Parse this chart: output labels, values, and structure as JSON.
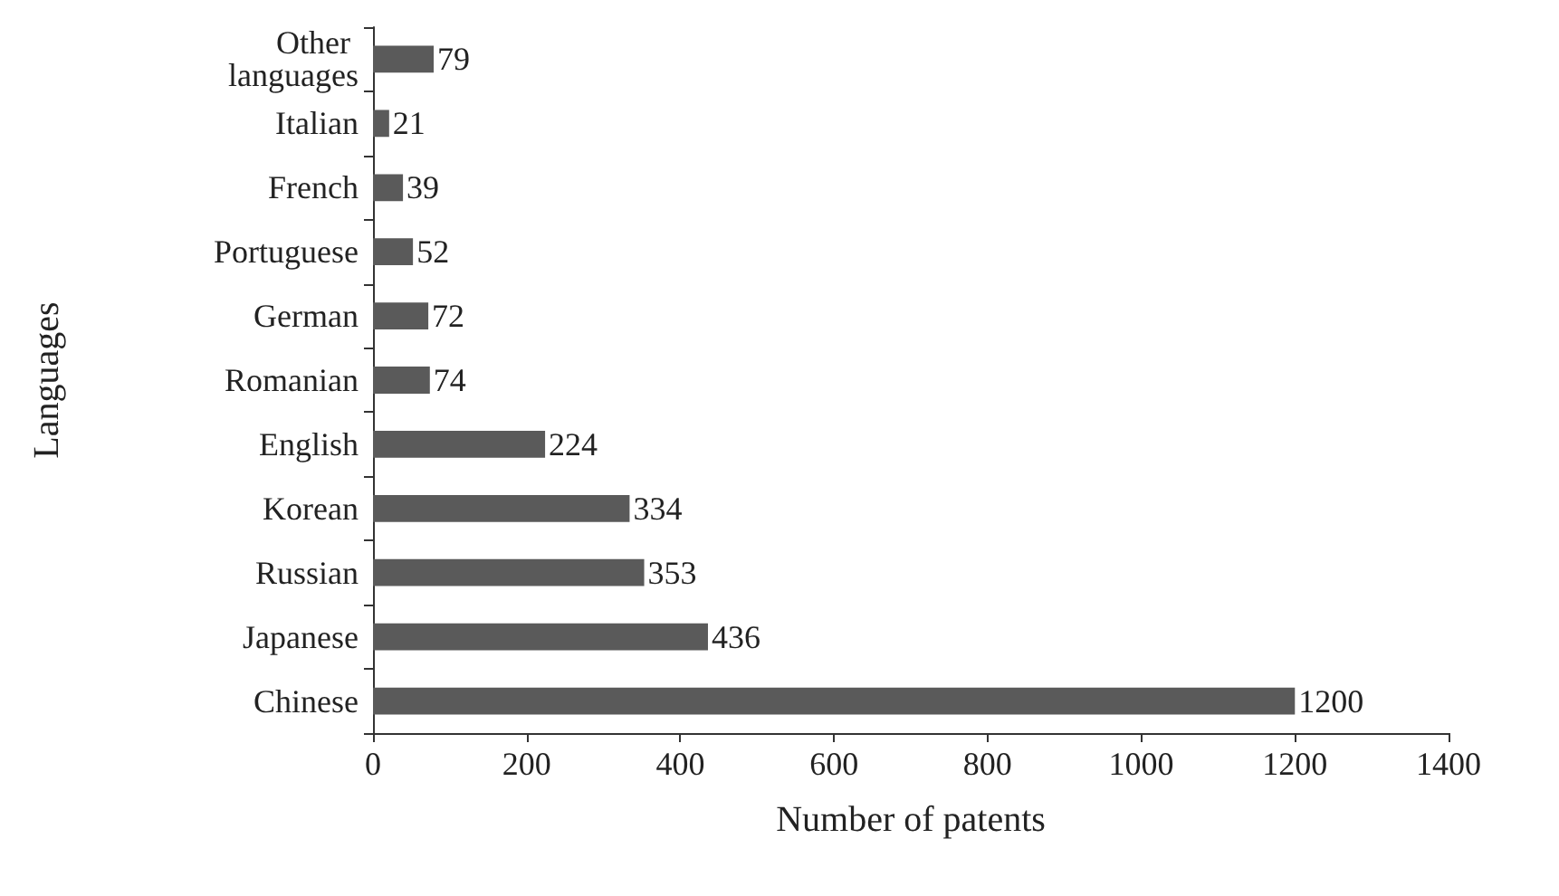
{
  "chart_data": {
    "type": "bar",
    "orientation": "horizontal",
    "xlabel": "Number of patents",
    "ylabel": "Languages",
    "categories": [
      "Other languages",
      "Italian",
      "French",
      "Portuguese",
      "German",
      "Romanian",
      "English",
      "Korean",
      "Russian",
      "Japanese",
      "Chinese"
    ],
    "values": [
      79,
      21,
      39,
      52,
      72,
      74,
      224,
      334,
      353,
      436,
      1200
    ],
    "color": "#5a5a5a",
    "xlim": [
      0,
      1400
    ],
    "xticks": [
      0,
      200,
      400,
      600,
      800,
      1000,
      1200,
      1400
    ],
    "data_labels": true
  }
}
